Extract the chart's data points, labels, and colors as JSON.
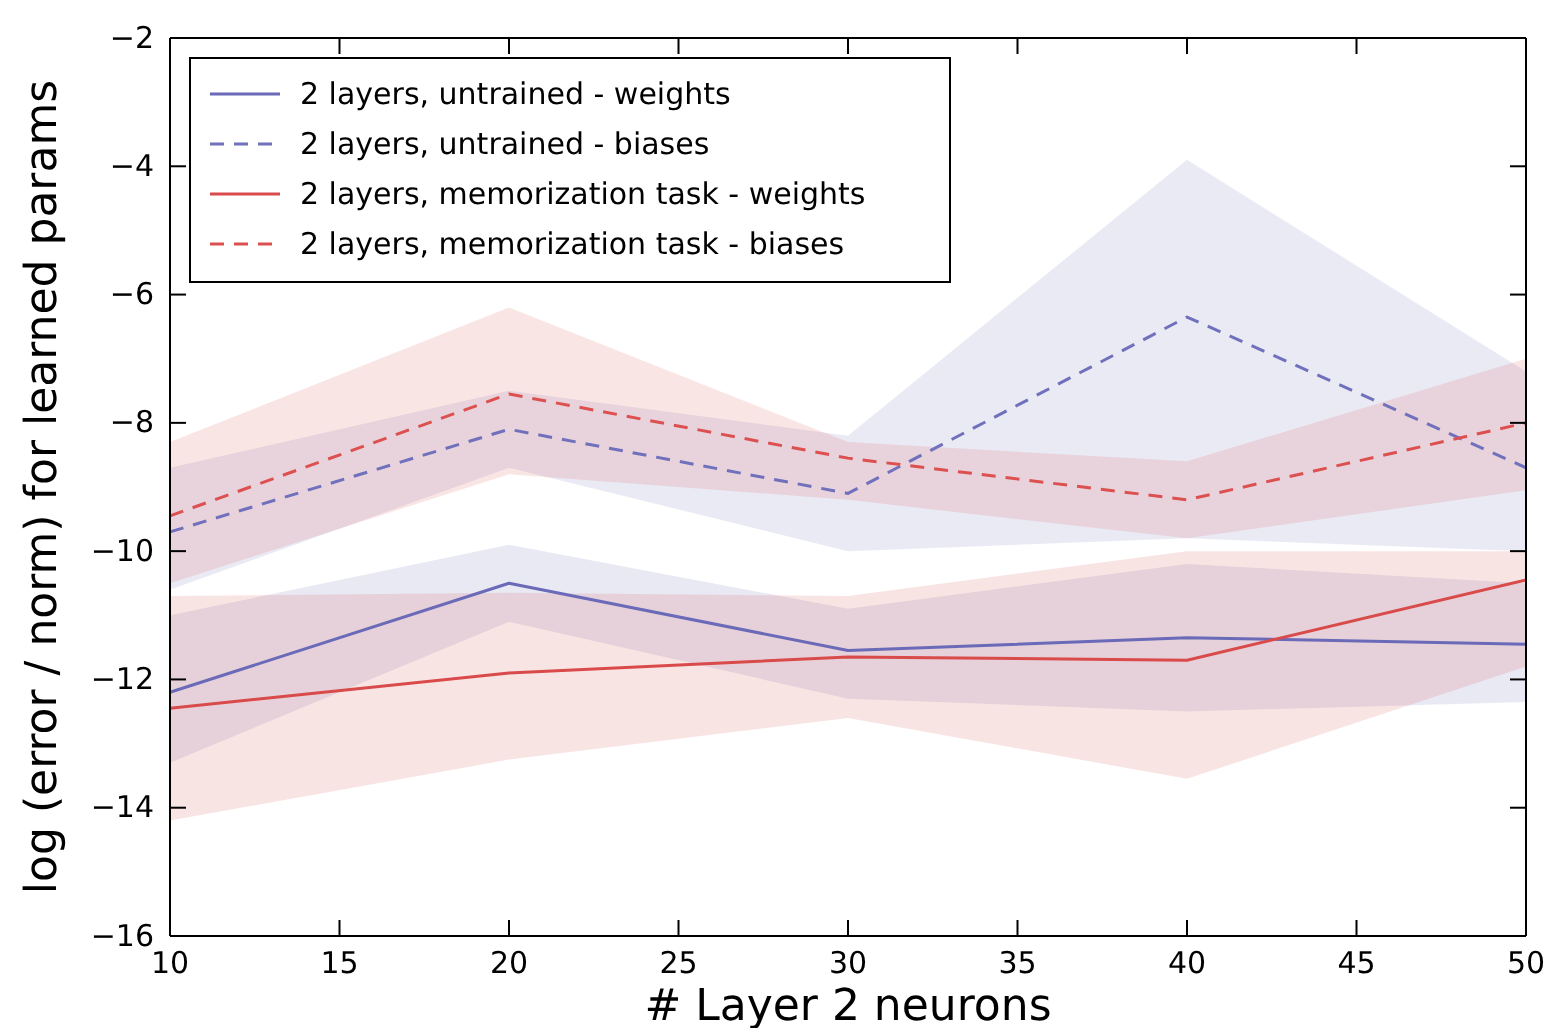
{
  "chart_data": {
    "type": "line",
    "xlabel": "# Layer 2 neurons",
    "ylabel": "log (error / norm) for learned params",
    "x": [
      10,
      20,
      30,
      40,
      50
    ],
    "xlim": [
      10,
      50
    ],
    "xticks": [
      10,
      15,
      20,
      25,
      30,
      35,
      40,
      45,
      50
    ],
    "ylim": [
      -16,
      -2
    ],
    "yticks": [
      -16,
      -14,
      -12,
      -10,
      -8,
      -6,
      -4,
      -2
    ],
    "grid": false,
    "legend": "top left",
    "marker": "none",
    "series": [
      {
        "name": "2 layers, untrained - weights",
        "color": "#6a6ab8",
        "line_style": "solid",
        "values": [
          -12.2,
          -10.5,
          -11.55,
          -11.35,
          -11.45
        ],
        "lower": [
          -13.3,
          -11.1,
          -12.3,
          -12.5,
          -12.35
        ],
        "upper": [
          -11.0,
          -9.9,
          -10.9,
          -10.2,
          -10.5
        ]
      },
      {
        "name": "2 layers, untrained - biases",
        "color": "#7070bc",
        "line_style": "dashed",
        "values": [
          -9.7,
          -8.1,
          -9.1,
          -6.35,
          -8.7
        ],
        "lower": [
          -10.6,
          -8.7,
          -10.0,
          -9.8,
          -10.0
        ],
        "upper": [
          -8.7,
          -7.5,
          -8.2,
          -3.9,
          -7.2
        ]
      },
      {
        "name": "2 layers, memorization task - weights",
        "color": "#d94a4a",
        "line_style": "solid",
        "values": [
          -12.45,
          -11.9,
          -11.65,
          -11.7,
          -10.45
        ],
        "lower": [
          -14.2,
          -13.25,
          -12.6,
          -13.55,
          -11.8
        ],
        "upper": [
          -10.7,
          -10.65,
          -10.7,
          -10.0,
          -10.0
        ]
      },
      {
        "name": "2 layers, memorization task - biases",
        "color": "#dc5050",
        "line_style": "dashed",
        "values": [
          -9.45,
          -7.55,
          -8.55,
          -9.2,
          -8.0
        ],
        "lower": [
          -10.5,
          -8.8,
          -9.2,
          -9.8,
          -9.05
        ],
        "upper": [
          -8.3,
          -6.2,
          -8.3,
          -8.6,
          -7.0
        ]
      }
    ]
  }
}
